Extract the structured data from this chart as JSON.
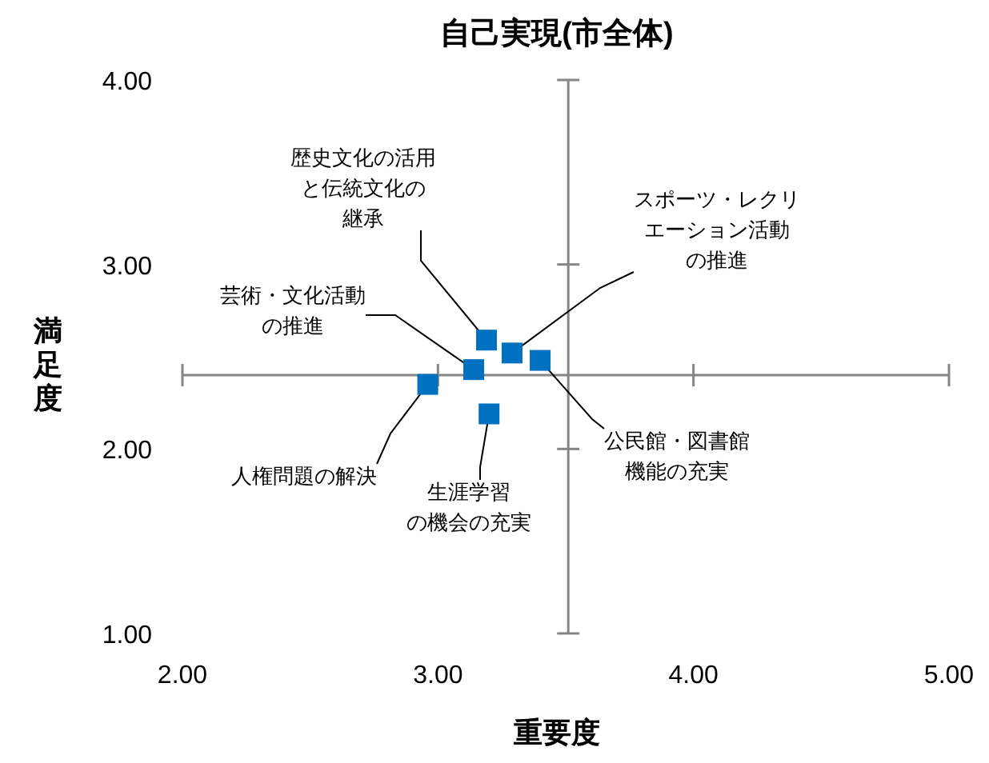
{
  "chart_data": {
    "type": "scatter",
    "title": "自己実現(市全体)",
    "xlabel": "重要度",
    "ylabel": "満足度",
    "xlim": [
      2,
      5
    ],
    "ylim": [
      1,
      4
    ],
    "xticks": [
      {
        "value": 2,
        "label": "2.00"
      },
      {
        "value": 3,
        "label": "3.00"
      },
      {
        "value": 4,
        "label": "4.00"
      },
      {
        "value": 5,
        "label": "5.00"
      }
    ],
    "yticks": [
      {
        "value": 1,
        "label": "1.00"
      },
      {
        "value": 2,
        "label": "2.00"
      },
      {
        "value": 3,
        "label": "3.00"
      },
      {
        "value": 4,
        "label": "4.00"
      }
    ],
    "marker": "square",
    "series": [
      {
        "color": "#0070c0",
        "x": [
          3.19,
          3.29,
          3.4,
          3.14,
          2.96,
          3.2
        ],
        "values": [
          2.59,
          2.52,
          2.48,
          2.43,
          2.35,
          2.19
        ]
      }
    ],
    "annotations": [
      {
        "text": "歴史文化の活用と伝統文化の継承",
        "x": 3.19,
        "y": 2.59
      },
      {
        "text": "スポーツ・レクリエーション活動の推進",
        "x": 3.29,
        "y": 2.52
      },
      {
        "text": "公民館・図書館機能の充実",
        "x": 3.4,
        "y": 2.48
      },
      {
        "text": "芸術・文化活動の推進",
        "x": 3.14,
        "y": 2.43
      },
      {
        "text": "人権問題の解決",
        "x": 2.96,
        "y": 2.35
      },
      {
        "text": "生涯学習の機会の充実",
        "x": 3.2,
        "y": 2.19
      }
    ],
    "ref_lines": [
      {
        "axis": "x",
        "value": 3.51
      },
      {
        "axis": "y",
        "value": 2.4
      }
    ]
  }
}
